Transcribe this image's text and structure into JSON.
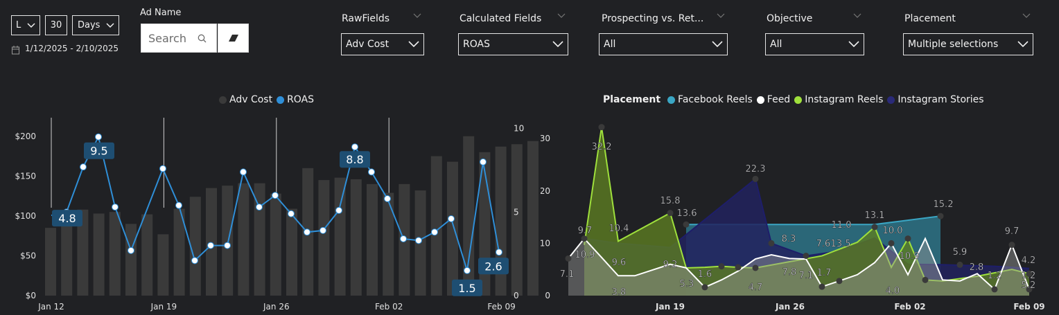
{
  "filters": {
    "period_unit": "L",
    "period_count": "30",
    "period_type": "Days",
    "date_range": "1/12/2025 - 2/10/2025",
    "ad_name_label": "Ad Name",
    "search_placeholder": "Search",
    "slicers": [
      {
        "label": "RawFields",
        "value": "Adv Cost"
      },
      {
        "label": "Calculated Fields",
        "value": "ROAS"
      },
      {
        "label": "Prospecting vs. Ret...",
        "value": "All"
      },
      {
        "label": "Objective",
        "value": "All"
      },
      {
        "label": "Placement",
        "value": "Multiple selections"
      }
    ]
  },
  "left_chart": {
    "legend": [
      {
        "name": "Adv Cost",
        "color": "#3a3a3a"
      },
      {
        "name": "ROAS",
        "color": "#2f8fd8"
      }
    ]
  },
  "right_chart": {
    "legend_title": "Placement",
    "legend": [
      {
        "name": "Facebook Reels",
        "color": "#3aa6c4"
      },
      {
        "name": "Feed",
        "color": "#ffffff"
      },
      {
        "name": "Instagram Reels",
        "color": "#9fe03c"
      },
      {
        "name": "Instagram Stories",
        "color": "#2a2a78"
      }
    ]
  },
  "chart_data": [
    {
      "type": "bar",
      "title": "",
      "x_ticks": [
        "Jan 12",
        "Jan 19",
        "Jan 26",
        "Feb 02",
        "Feb 09"
      ],
      "y_ticks": [
        "$0",
        "$50",
        "$100",
        "$150",
        "$200"
      ],
      "ylim": [
        0,
        225
      ],
      "y2_ticks": [
        "0",
        "5",
        "10"
      ],
      "y2lim": [
        0,
        10.4
      ],
      "series": [
        {
          "name": "Adv Cost",
          "type": "bar",
          "values": [
            85,
            98,
            108,
            103,
            105,
            90,
            102,
            77,
            109,
            124,
            135,
            138,
            141,
            141,
            128,
            109,
            160,
            145,
            148,
            146,
            140,
            129,
            140,
            132,
            175,
            168,
            200,
            180,
            187,
            190,
            194,
            212
          ]
        },
        {
          "name": "ROAS",
          "type": "line",
          "values": [
            4.8,
            4.9,
            7.7,
            9.5,
            5.2,
            2.7,
            null,
            null,
            7.6,
            5.3,
            2.1,
            3.0,
            3.0,
            7.4,
            5.2,
            6.0,
            4.9,
            3.8,
            3.9,
            5.1,
            8.8,
            7.4,
            5.7,
            3.4,
            3.3,
            3.8,
            4.6,
            1.5,
            8.0,
            2.6
          ],
          "x_index": [
            0,
            1,
            2,
            3,
            4,
            5,
            6,
            7,
            8,
            9,
            10,
            11,
            12,
            13,
            14,
            15,
            16,
            17,
            18,
            19,
            20,
            21,
            22,
            23,
            24,
            25,
            26,
            27,
            28,
            29
          ]
        }
      ],
      "data_labels": [
        "4.8",
        "9.5",
        "8.8",
        "1.5",
        "2.6"
      ]
    },
    {
      "type": "area",
      "title": "",
      "x_ticks": [
        "Jan 19",
        "Jan 26",
        "Feb 02",
        "Feb 09"
      ],
      "y_ticks": [
        "0",
        "10",
        "20",
        "30"
      ],
      "ylim": [
        0,
        34
      ],
      "series": [
        {
          "name": "Facebook Reels",
          "values": [
            13.6,
            13.6,
            13.6,
            13.6,
            13.6,
            13.6,
            13.6,
            13.6,
            13.6,
            13.6,
            13.6,
            14.1,
            14.6,
            15.2
          ]
        },
        {
          "name": "Feed",
          "values": [
            7.1,
            10.9,
            3.8,
            3.8,
            6.0,
            5.3,
            1.6,
            3.0,
            4.7,
            7.0,
            7.8,
            7.1,
            1.7,
            2.8,
            4.0,
            10.0,
            4.0,
            10.9,
            3.0,
            2.8,
            2.8,
            5.9,
            2.8,
            1.2,
            9.7,
            1.2
          ]
        },
        {
          "name": "Instagram Reels",
          "values": [
            9.7,
            32.2,
            10.4,
            15.8,
            5.3,
            5.4,
            5.6,
            5.4,
            5.3,
            7.6,
            10.2,
            13.1,
            5.4,
            10.9,
            3.0,
            2.8,
            3.7,
            5.0,
            4.2
          ]
        },
        {
          "name": "Instagram Stories",
          "values": [
            10.9,
            10.0,
            9.2,
            22.3,
            8.3,
            7.6,
            13.5,
            11.0,
            6.0,
            5.9,
            5.8,
            5.6,
            5.2
          ]
        }
      ],
      "data_labels": [
        "7.1",
        "9.7",
        "10.9",
        "32.2",
        "10.4",
        "9.6",
        "3.8",
        "15.8",
        "13.6",
        "9.2",
        "5.3",
        "1.6",
        "22.3",
        "8.3",
        "4.7",
        "7.8",
        "7.6",
        "7.1",
        "13.5",
        "1.7",
        "11.0",
        "13.1",
        "10.0",
        "10.9",
        "4.0",
        "15.2",
        "5.9",
        "2.8",
        "1.2",
        "9.7",
        "4.2",
        "1.2",
        "5.2"
      ]
    }
  ]
}
